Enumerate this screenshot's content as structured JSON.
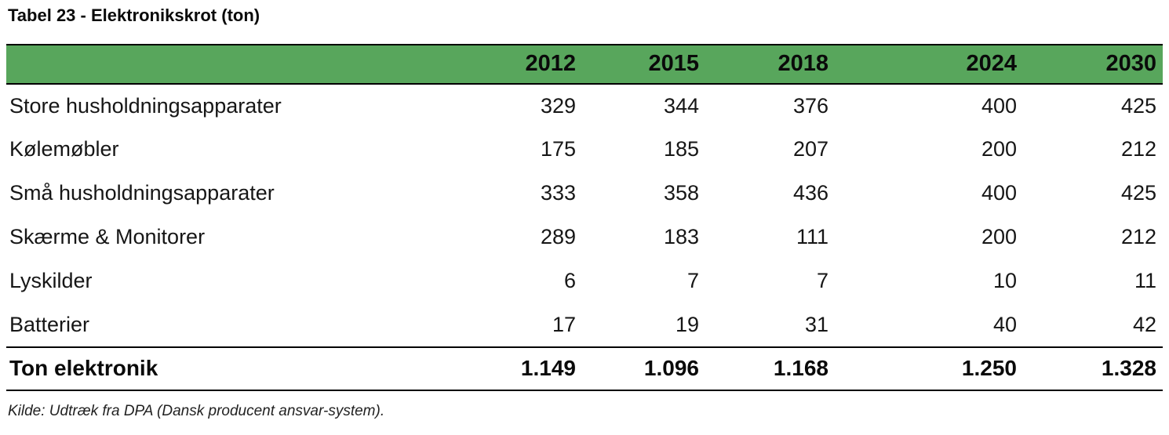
{
  "title": "Tabel 23 - Elektronikskrot (ton)",
  "table": {
    "header": {
      "corner": "",
      "years": [
        "2012",
        "2015",
        "2018",
        "2024",
        "2030"
      ]
    },
    "rows": [
      {
        "label": "Store husholdningsapparater",
        "values": [
          "329",
          "344",
          "376",
          "400",
          "425"
        ]
      },
      {
        "label": "Kølemøbler",
        "values": [
          "175",
          "185",
          "207",
          "200",
          "212"
        ]
      },
      {
        "label": "Små husholdningsapparater",
        "values": [
          "333",
          "358",
          "436",
          "400",
          "425"
        ]
      },
      {
        "label": "Skærme & Monitorer",
        "values": [
          "289",
          "183",
          "111",
          "200",
          "212"
        ]
      },
      {
        "label": "Lyskilder",
        "values": [
          "6",
          "7",
          "7",
          "10",
          "11"
        ]
      },
      {
        "label": "Batterier",
        "values": [
          "17",
          "19",
          "31",
          "40",
          "42"
        ]
      }
    ],
    "total_row": {
      "label": "Ton elektronik",
      "values": [
        "1.149",
        "1.096",
        "1.168",
        "1.250",
        "1.328"
      ]
    }
  },
  "source_note": "Kilde: Udtræk fra DPA (Dansk producent ansvar-system).",
  "colors": {
    "header_green": "#58A65C",
    "border_black": "#000000",
    "text": "#0d0d0d"
  }
}
